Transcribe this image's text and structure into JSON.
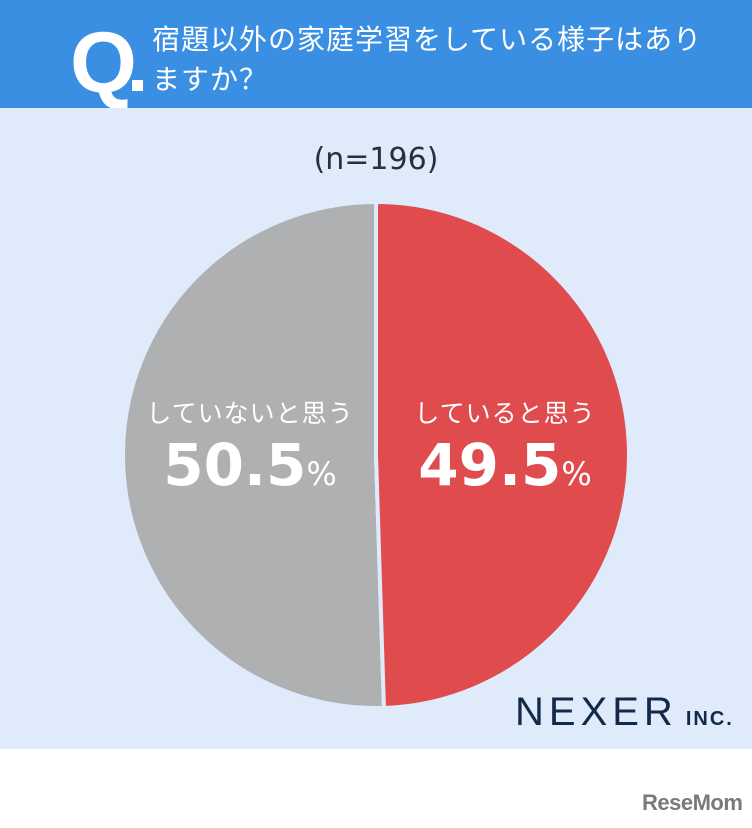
{
  "header": {
    "q_mark": "Q",
    "question": "宿題以外の家庭学習をしている様子はありますか？"
  },
  "sample_size": "(n=196)",
  "colors": {
    "header_bg": "#3a8fe3",
    "panel_bg": "#dfeafa",
    "yes": "#e04b4d",
    "no": "#afb0b2"
  },
  "labels": {
    "no": {
      "category": "していないと思う",
      "value": "50.5",
      "unit": "%"
    },
    "yes": {
      "category": "していると思う",
      "value": "49.5",
      "unit": "%"
    }
  },
  "brand": {
    "name": "NEXER",
    "suffix": "INC."
  },
  "watermark": "ReseMom",
  "chart_data": {
    "type": "pie",
    "title": "宿題以外の家庭学習をしている様子はありますか？",
    "subtitle": "(n=196)",
    "categories": [
      "していると思う",
      "していないと思う"
    ],
    "values": [
      49.5,
      50.5
    ],
    "unit": "%",
    "colors": [
      "#e04b4d",
      "#afb0b2"
    ],
    "start_angle": "12 o'clock, clockwise",
    "legend": "none (labels inside slices)"
  }
}
